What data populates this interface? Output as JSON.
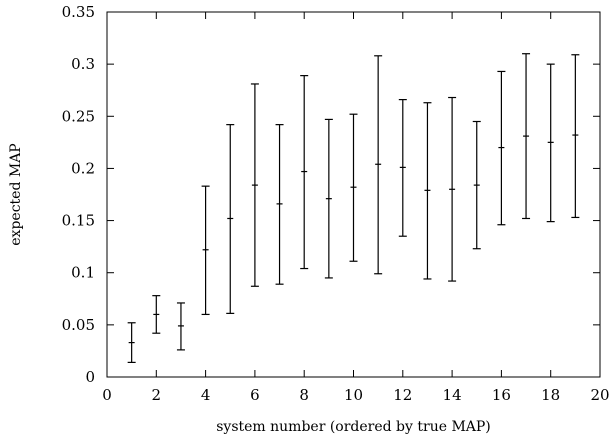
{
  "chart_data": {
    "type": "scatter",
    "title": "",
    "xlabel": "system number (ordered by true MAP)",
    "ylabel": "expected MAP",
    "xlim": [
      0,
      20
    ],
    "ylim": [
      0,
      0.35
    ],
    "xticks": [
      0,
      2,
      4,
      6,
      8,
      10,
      12,
      14,
      16,
      18,
      20
    ],
    "yticks": [
      0,
      0.05,
      0.1,
      0.15,
      0.2,
      0.25,
      0.3,
      0.35
    ],
    "xtick_labels": [
      "0",
      "2",
      "4",
      "6",
      "8",
      "10",
      "12",
      "14",
      "16",
      "18",
      "20"
    ],
    "ytick_labels": [
      "0",
      "0.05",
      "0.1",
      "0.15",
      "0.2",
      "0.25",
      "0.3",
      "0.35"
    ],
    "grid": false,
    "legend": "none",
    "marker": "+ with vertical error bars",
    "series": [
      {
        "x": [
          1,
          2,
          3,
          4,
          5,
          6,
          7,
          8,
          9,
          10,
          11,
          12,
          13,
          14,
          15,
          16,
          17,
          18,
          19
        ],
        "y": [
          0.033,
          0.06,
          0.049,
          0.122,
          0.152,
          0.184,
          0.166,
          0.197,
          0.171,
          0.182,
          0.204,
          0.201,
          0.179,
          0.18,
          0.184,
          0.22,
          0.231,
          0.225,
          0.232
        ],
        "y_low": [
          0.014,
          0.042,
          0.026,
          0.06,
          0.061,
          0.087,
          0.089,
          0.104,
          0.095,
          0.111,
          0.099,
          0.135,
          0.094,
          0.092,
          0.123,
          0.146,
          0.152,
          0.149,
          0.153
        ],
        "y_high": [
          0.052,
          0.078,
          0.071,
          0.183,
          0.242,
          0.281,
          0.242,
          0.289,
          0.247,
          0.252,
          0.308,
          0.266,
          0.263,
          0.268,
          0.245,
          0.293,
          0.31,
          0.3,
          0.309
        ]
      }
    ]
  }
}
